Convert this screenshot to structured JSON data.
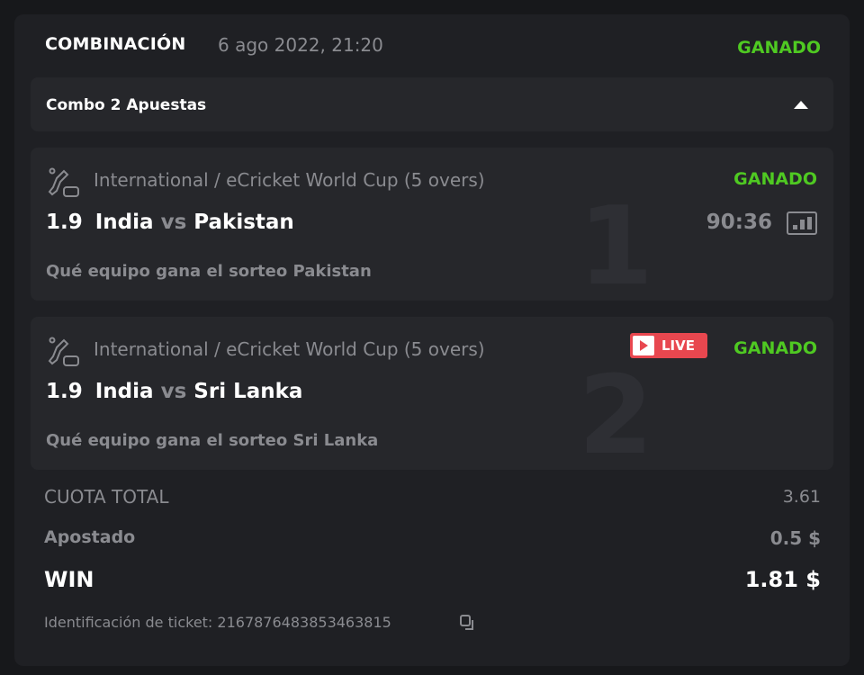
{
  "header": {
    "title": "COMBINACIÓN",
    "date": "6 ago 2022, 21:20",
    "status": "GANADO"
  },
  "combo": {
    "label": "Combo 2 Apuestas",
    "toggle_icon": "caret-up-icon"
  },
  "bets": [
    {
      "index": "1",
      "league": "International / eCricket World Cup (5 overs)",
      "status": "GANADO",
      "odd": "1.9",
      "home": "India",
      "vs": "vs",
      "away": "Pakistan",
      "market": "Qué equipo gana el sorteo Pakistan",
      "timer": "90:36",
      "icon": "ecricket-icon"
    },
    {
      "index": "2",
      "league": "International / eCricket World Cup (5 overs)",
      "status": "GANADO",
      "odd": "1.9",
      "home": "India",
      "vs": "vs",
      "away": "Sri Lanka",
      "market": "Qué equipo gana el sorteo Sri Lanka",
      "live": "LIVE",
      "icon": "ecricket-icon"
    }
  ],
  "summary": {
    "total_odds_label": "CUOTA TOTAL",
    "total_odds": "3.61",
    "stake_label": "Apostado",
    "stake": "0.5 $",
    "win_label": "WIN",
    "win": "1.81 $",
    "ticket_label": "Identificación de ticket: 2167876483853463815"
  },
  "colors": {
    "won": "#4fc922",
    "live": "#e8474f",
    "background": "#17181b",
    "card": "#1f2024"
  }
}
